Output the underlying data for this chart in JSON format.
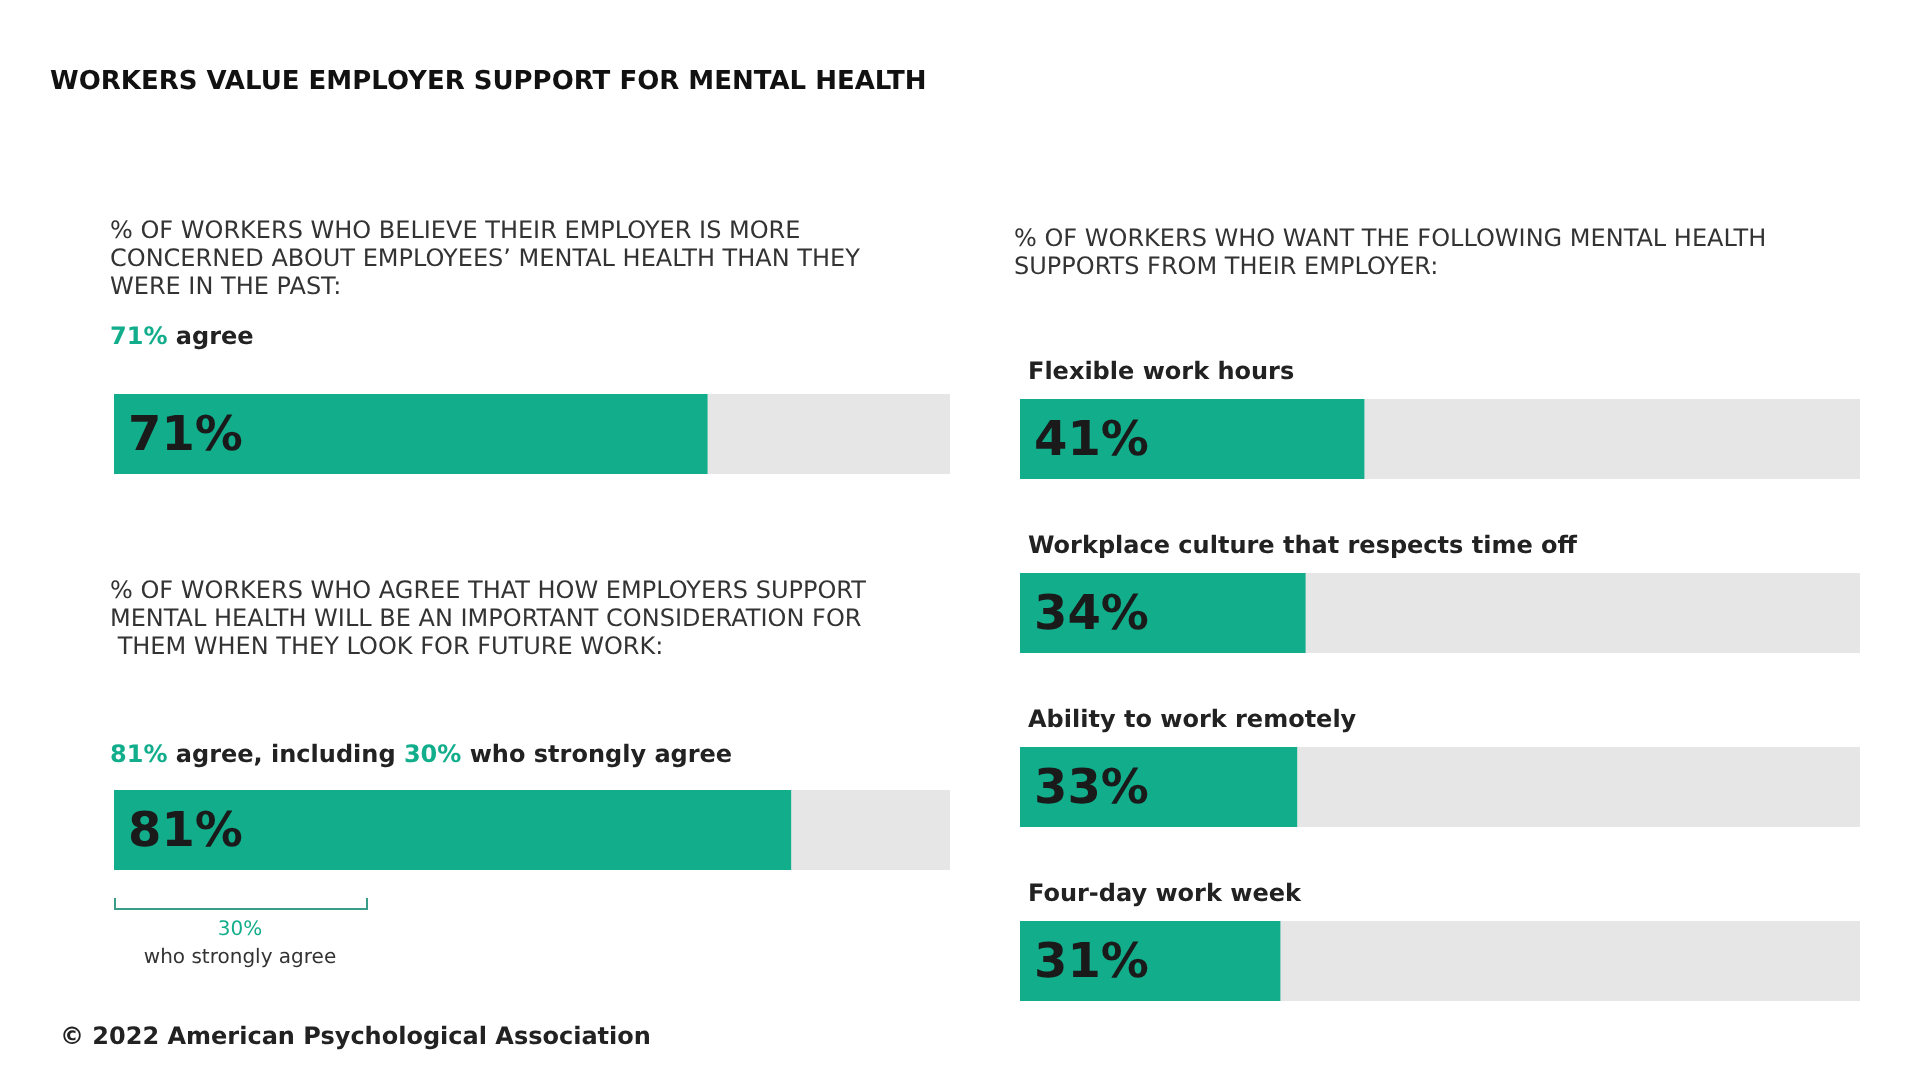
{
  "chart_data": [
    {
      "type": "bar",
      "orientation": "horizontal",
      "title": "WORKERS VALUE EMPLOYER SUPPORT FOR MENTAL HEALTH",
      "subtitle": "% OF WORKERS WHO BELIEVE THEIR EMPLOYER IS MORE CONCERNED ABOUT EMPLOYEES’ MENTAL HEALTH THAN THEY WERE IN THE PAST:",
      "annotations": [
        "71% agree",
        "% OF WORKERS WHO AGREE THAT HOW EMPLOYERS SUPPORT MENTAL HEALTH WILL BE AN IMPORTANT CONSIDERATION FOR THEM WHEN THEY LOOK FOR FUTURE WORK:",
        "81% agree, including 30% who strongly agree",
        "30%\nwho strongly agree",
        "© 2022 American Psychological Association"
      ],
      "categories": [
        null,
        null
      ],
      "values": [
        71,
        81
      ],
      "value_labels": [
        "71%",
        "81%"
      ],
      "color": "#12ae8c",
      "xlim": [
        0,
        100
      ],
      "tick_labels": false
    },
    {
      "type": "bar",
      "orientation": "horizontal",
      "title": "% OF WORKERS WHO WANT THE FOLLOWING MENTAL HEALTH SUPPORTS FROM THEIR EMPLOYER:",
      "categories": [
        "Flexible work hours",
        "Workplace culture that respects time off",
        "Ability to work remotely",
        "Four-day work week"
      ],
      "values": [
        41,
        34,
        33,
        31
      ],
      "value_labels": [
        "41%",
        "34%",
        "33%",
        "31%"
      ],
      "color": "#12ae8c",
      "xlim": [
        0,
        100
      ],
      "tick_labels": "y"
    }
  ]
}
